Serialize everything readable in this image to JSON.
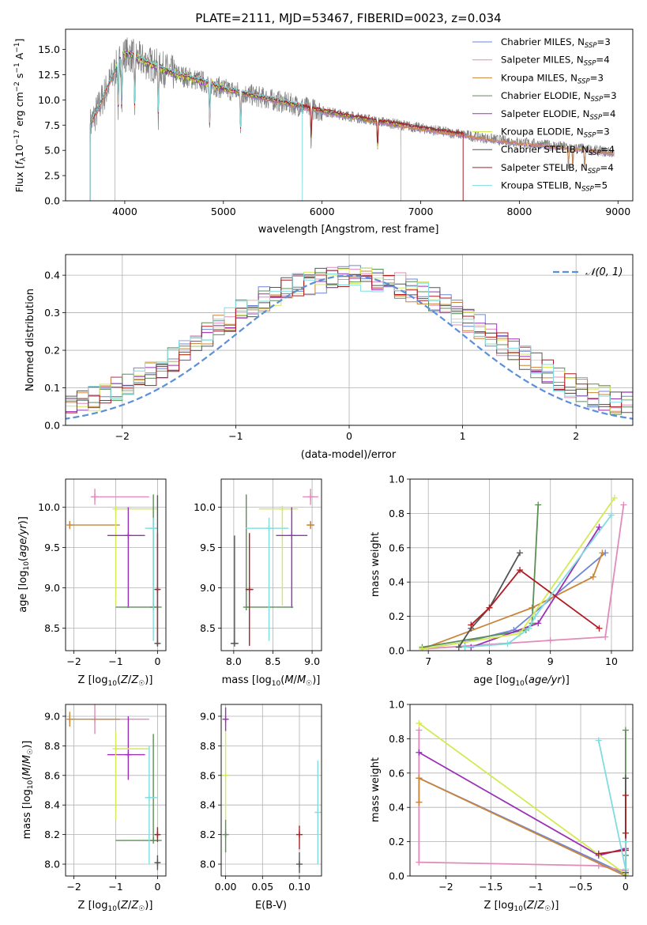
{
  "colors": {
    "Chabrier MILES": "#6f86d6",
    "Salpeter MILES": "#e08bbb",
    "Kroupa MILES": "#c9853a",
    "Chabrier ELODIE": "#5c8f55",
    "Salpeter ELODIE": "#9b30b7",
    "Kroupa ELODIE": "#d4ea53",
    "Chabrier STELIB": "#555555",
    "Salpeter STELIB": "#b01c22",
    "Kroupa STELIB": "#7fdde0",
    "data": "#808080",
    "gaussian": "#5b8fd9"
  },
  "chart_data": [
    {
      "type": "line",
      "title": "PLATE=2111, MJD=53467, FIBERID=0023, z=0.034",
      "xlabel": "wavelength [Angstrom, rest frame]",
      "ylabel": "Flux [f_λ 10^-17 erg cm^-2 s^-1 A^-1]",
      "xlim": [
        3400,
        9150
      ],
      "ylim": [
        0,
        17
      ],
      "xticks": [
        4000,
        5000,
        6000,
        7000,
        8000,
        9000
      ],
      "yticks": [
        0.0,
        2.5,
        5.0,
        7.5,
        10.0,
        12.5,
        15.0
      ],
      "legend_position": "top-right",
      "series": [
        {
          "name": "Chabrier MILES, N_SSP=3"
        },
        {
          "name": "Salpeter MILES, N_SSP=4"
        },
        {
          "name": "Kroupa MILES, N_SSP=3"
        },
        {
          "name": "Chabrier ELODIE, N_SSP=3"
        },
        {
          "name": "Salpeter ELODIE, N_SSP=4"
        },
        {
          "name": "Kroupa ELODIE, N_SSP=3"
        },
        {
          "name": "Chabrier STELIB, N_SSP=4"
        },
        {
          "name": "Salpeter STELIB, N_SSP=4"
        },
        {
          "name": "Kroupa STELIB, N_SSP=5"
        }
      ],
      "data_continuum": {
        "x": [
          3650,
          3800,
          3950,
          4050,
          4200,
          4500,
          4800,
          5000,
          5500,
          6000,
          6500,
          7000,
          7400,
          7800,
          8200,
          8600,
          9000
        ],
        "y": [
          10.0,
          12.5,
          14.5,
          14.5,
          13.8,
          12.6,
          11.8,
          11.1,
          10.0,
          8.9,
          8.0,
          7.2,
          6.6,
          6.0,
          5.6,
          5.2,
          4.7
        ]
      },
      "model_cutoffs": {
        "Kroupa ELODIE": [
          3900,
          6800
        ],
        "Chabrier ELODIE": [
          3900,
          6800
        ],
        "Salpeter ELODIE": [
          3900,
          6800
        ],
        "Kroupa STELIB": [
          3650,
          5800
        ],
        "Chabrier STELIB": [
          3650,
          7430
        ],
        "Salpeter STELIB": [
          3650,
          7430
        ]
      }
    },
    {
      "type": "histogram",
      "xlabel": "(data-model)/error",
      "ylabel": "Normed distribution",
      "xlim": [
        -2.5,
        2.5
      ],
      "ylim": [
        0,
        0.455
      ],
      "xticks": [
        -2,
        -1,
        0,
        1,
        2
      ],
      "yticks": [
        0.0,
        0.1,
        0.2,
        0.3,
        0.4
      ],
      "legend": [
        "𝒩(0, 1)"
      ],
      "legend_position": "top-right",
      "bin_width": 0.1,
      "base_values": [
        0.03,
        0.032,
        0.035,
        0.04,
        0.045,
        0.05,
        0.055,
        0.062,
        0.072,
        0.083,
        0.095,
        0.108,
        0.123,
        0.14,
        0.158,
        0.177,
        0.197,
        0.218,
        0.24,
        0.261,
        0.282,
        0.302,
        0.32,
        0.336,
        0.35,
        0.362,
        0.372,
        0.38,
        0.386,
        0.39,
        0.392,
        0.392,
        0.39,
        0.386,
        0.38,
        0.372,
        0.362,
        0.35,
        0.336,
        0.32,
        0.302,
        0.282,
        0.261,
        0.24,
        0.218,
        0.197,
        0.177,
        0.158,
        0.14,
        0.123,
        0.108,
        0.095,
        0.083,
        0.072,
        0.062,
        0.055,
        0.05,
        0.045,
        0.04,
        0.035,
        0.032,
        0.03
      ]
    },
    {
      "type": "errorbar",
      "xlabel": "Z [log10(Z/Z☉)]",
      "ylabel": "age [log10(age/yr)]",
      "xlim": [
        -2.2,
        0.2
      ],
      "ylim": [
        8.22,
        10.35
      ],
      "xticks": [
        -2,
        -1,
        0
      ],
      "yticks": [
        8.5,
        9.0,
        9.5,
        10.0
      ],
      "points": [
        {
          "series": "Salpeter MILES",
          "x": -1.5,
          "y": 10.13,
          "xerr": [
            0.1,
            1.3
          ],
          "yerr": [
            0.1,
            0.1
          ]
        },
        {
          "series": "Kroupa MILES",
          "x": -2.1,
          "y": 9.78,
          "xerr": [
            0.0,
            1.2
          ],
          "yerr": [
            0.05,
            0.05
          ]
        },
        {
          "series": "Kroupa ELODIE",
          "x": -1.0,
          "y": 9.98,
          "xerr": [
            0.0,
            1.0
          ],
          "yerr": [
            1.2,
            0.0
          ]
        },
        {
          "series": "Salpeter ELODIE",
          "x": -0.7,
          "y": 9.65,
          "xerr": [
            0.5,
            0.4
          ],
          "yerr": [
            0.9,
            0.35
          ]
        },
        {
          "series": "Chabrier ELODIE",
          "x": -0.1,
          "y": 8.76,
          "xerr": [
            0.9,
            0.2
          ],
          "yerr": [
            0.0,
            1.4
          ]
        },
        {
          "series": "Kroupa STELIB",
          "x": -0.1,
          "y": 9.74,
          "xerr": [
            0.2,
            0.1
          ],
          "yerr": [
            1.4,
            0.13
          ]
        },
        {
          "series": "Salpeter STELIB",
          "x": 0.0,
          "y": 8.98,
          "xerr": [
            0.05,
            0.05
          ],
          "yerr": [
            0.7,
            0.7
          ]
        },
        {
          "series": "Chabrier STELIB",
          "x": 0.0,
          "y": 8.31,
          "xerr": [
            0.05,
            0.05
          ],
          "yerr": [
            0.0,
            1.84
          ]
        }
      ]
    },
    {
      "type": "errorbar",
      "xlabel": "mass [log10(M/M☉)]",
      "ylabel": "",
      "xlim": [
        7.84,
        9.12
      ],
      "ylim": [
        8.22,
        10.35
      ],
      "xticks": [
        8.0,
        8.5,
        9.0
      ],
      "yticks": [
        8.5,
        9.0,
        9.5,
        10.0
      ],
      "points": [
        {
          "series": "Salpeter MILES",
          "x": 8.98,
          "y": 10.13,
          "xerr": [
            0.1,
            0.1
          ],
          "yerr": [
            0.1,
            0.1
          ]
        },
        {
          "series": "Kroupa MILES",
          "x": 8.98,
          "y": 9.78,
          "xerr": [
            0.05,
            0.05
          ],
          "yerr": [
            0.05,
            0.05
          ]
        },
        {
          "series": "Kroupa ELODIE",
          "x": 8.62,
          "y": 9.98,
          "xerr": [
            0.3,
            0.2
          ],
          "yerr": [
            1.2,
            0.0
          ]
        },
        {
          "series": "Salpeter ELODIE",
          "x": 8.74,
          "y": 9.65,
          "xerr": [
            0.2,
            0.2
          ],
          "yerr": [
            0.9,
            0.35
          ]
        },
        {
          "series": "Chabrier ELODIE",
          "x": 8.16,
          "y": 8.76,
          "xerr": [
            0.0,
            0.6
          ],
          "yerr": [
            0.0,
            1.4
          ]
        },
        {
          "series": "Kroupa STELIB",
          "x": 8.45,
          "y": 9.74,
          "xerr": [
            0.3,
            0.25
          ],
          "yerr": [
            1.4,
            0.13
          ]
        },
        {
          "series": "Salpeter STELIB",
          "x": 8.2,
          "y": 8.98,
          "xerr": [
            0.05,
            0.05
          ],
          "yerr": [
            0.7,
            0.7
          ]
        },
        {
          "series": "Chabrier STELIB",
          "x": 8.01,
          "y": 8.31,
          "xerr": [
            0.05,
            0.05
          ],
          "yerr": [
            0.0,
            1.34
          ]
        }
      ]
    },
    {
      "type": "line",
      "xlabel": "age  [log10(age/yr)]",
      "ylabel": "mass weight",
      "xlim": [
        6.7,
        10.35
      ],
      "ylim": [
        0.0,
        1.0
      ],
      "xticks": [
        7,
        8,
        9,
        10
      ],
      "yticks": [
        0.0,
        0.2,
        0.4,
        0.6,
        0.8,
        1.0
      ],
      "series": [
        {
          "name": "Chabrier MILES",
          "x": [
            6.9,
            7.6,
            8.4,
            9.9
          ],
          "y": [
            0.01,
            0.05,
            0.12,
            0.57
          ]
        },
        {
          "name": "Salpeter MILES",
          "x": [
            6.9,
            9.0,
            9.9,
            10.2
          ],
          "y": [
            0.01,
            0.06,
            0.08,
            0.85
          ]
        },
        {
          "name": "Kroupa MILES",
          "x": [
            6.9,
            8.7,
            9.7,
            9.85
          ],
          "y": [
            0.01,
            0.25,
            0.43,
            0.57
          ]
        },
        {
          "name": "Chabrier ELODIE",
          "x": [
            6.9,
            8.6,
            8.7,
            8.8
          ],
          "y": [
            0.02,
            0.12,
            0.16,
            0.85
          ]
        },
        {
          "name": "Salpeter ELODIE",
          "x": [
            7.7,
            8.8,
            9.8
          ],
          "y": [
            0.02,
            0.16,
            0.72
          ]
        },
        {
          "name": "Kroupa ELODIE",
          "x": [
            6.9,
            8.5,
            10.05
          ],
          "y": [
            0.01,
            0.1,
            0.89
          ]
        },
        {
          "name": "Chabrier STELIB",
          "x": [
            7.5,
            7.7,
            8.0,
            8.5
          ],
          "y": [
            0.02,
            0.13,
            0.25,
            0.57
          ]
        },
        {
          "name": "Salpeter STELIB",
          "x": [
            7.7,
            8.0,
            8.5,
            9.8
          ],
          "y": [
            0.15,
            0.25,
            0.47,
            0.13
          ]
        },
        {
          "name": "Kroupa STELIB",
          "x": [
            7.6,
            8.3,
            8.65,
            8.75,
            10.0
          ],
          "y": [
            0.02,
            0.04,
            0.13,
            0.2,
            0.79
          ]
        }
      ]
    },
    {
      "type": "errorbar",
      "xlabel": "Z [log10(Z/Z☉)]",
      "ylabel": "mass [log10(M/M☉)]",
      "xlim": [
        -2.2,
        0.2
      ],
      "ylim": [
        7.92,
        9.08
      ],
      "xticks": [
        -2,
        -1,
        0
      ],
      "yticks": [
        8.0,
        8.2,
        8.4,
        8.6,
        8.8,
        9.0
      ],
      "points": [
        {
          "series": "Salpeter MILES",
          "x": -1.5,
          "y": 8.98,
          "xerr": [
            0.1,
            1.3
          ],
          "yerr": [
            0.1,
            0.1
          ]
        },
        {
          "series": "Kroupa MILES",
          "x": -2.1,
          "y": 8.98,
          "xerr": [
            0.0,
            1.2
          ],
          "yerr": [
            0.05,
            0.05
          ]
        },
        {
          "series": "Salpeter ELODIE",
          "x": -0.7,
          "y": 8.74,
          "xerr": [
            0.5,
            0.4
          ],
          "yerr": [
            0.17,
            0.26
          ]
        },
        {
          "series": "Kroupa ELODIE",
          "x": -1.0,
          "y": 8.78,
          "xerr": [
            0.0,
            0.8
          ],
          "yerr": [
            0.48,
            0.12
          ]
        },
        {
          "series": "Chabrier ELODIE",
          "x": -0.1,
          "y": 8.16,
          "xerr": [
            0.9,
            0.2
          ],
          "yerr": [
            0.0,
            0.72
          ]
        },
        {
          "series": "Kroupa STELIB",
          "x": -0.2,
          "y": 8.45,
          "xerr": [
            0.1,
            0.2
          ],
          "yerr": [
            0.45,
            0.35
          ]
        },
        {
          "series": "Salpeter STELIB",
          "x": 0.0,
          "y": 8.2,
          "xerr": [
            0.05,
            0.05
          ],
          "yerr": [
            0.05,
            0.05
          ]
        },
        {
          "series": "Chabrier STELIB",
          "x": 0.0,
          "y": 8.01,
          "xerr": [
            0.05,
            0.05
          ],
          "yerr": [
            0.05,
            0.05
          ]
        }
      ]
    },
    {
      "type": "errorbar",
      "xlabel": "E(B-V)",
      "ylabel": "",
      "xlim": [
        -0.006,
        0.13
      ],
      "ylim": [
        7.92,
        9.08
      ],
      "xticks": [
        0.0,
        0.05,
        0.1
      ],
      "yticks": [
        8.0,
        8.2,
        8.4,
        8.6,
        8.8,
        9.0
      ],
      "points": [
        {
          "series": "Salpeter ELODIE",
          "x": 0.0,
          "y": 8.98,
          "yerr": [
            0.08,
            0.08
          ]
        },
        {
          "series": "Kroupa ELODIE",
          "x": 0.0,
          "y": 8.6,
          "yerr": [
            0.3,
            0.3
          ]
        },
        {
          "series": "Chabrier ELODIE",
          "x": 0.0,
          "y": 8.2,
          "yerr": [
            0.12,
            0.1
          ]
        },
        {
          "series": "Salpeter STELIB",
          "x": 0.1,
          "y": 8.2,
          "yerr": [
            0.1,
            0.06
          ]
        },
        {
          "series": "Chabrier STELIB",
          "x": 0.1,
          "y": 8.0,
          "yerr": [
            0.06,
            0.08
          ]
        },
        {
          "series": "Kroupa STELIB",
          "x": 0.125,
          "y": 8.35,
          "yerr": [
            0.35,
            0.35
          ]
        }
      ]
    },
    {
      "type": "line",
      "xlabel": "Z [log10(Z/Z☉)]",
      "ylabel": "mass weight",
      "xlim": [
        -2.4,
        0.08
      ],
      "ylim": [
        0.0,
        1.0
      ],
      "xticks": [
        -2.0,
        -1.5,
        -1.0,
        -0.5,
        0.0
      ],
      "yticks": [
        0.0,
        0.2,
        0.4,
        0.6,
        0.8,
        1.0
      ],
      "series": [
        {
          "name": "Chabrier MILES",
          "x": [
            -2.3,
            0.0
          ],
          "y": [
            0.57,
            0.01
          ]
        },
        {
          "name": "Salpeter MILES",
          "x": [
            -2.3,
            -2.3,
            -2.3,
            -0.3,
            0.0,
            0.0
          ],
          "y": [
            0.85,
            0.43,
            0.08,
            0.06,
            0.03,
            0.12
          ]
        },
        {
          "name": "Kroupa MILES",
          "x": [
            -2.3,
            -2.3,
            0.0
          ],
          "y": [
            0.43,
            0.57,
            0.0
          ]
        },
        {
          "name": "Chabrier ELODIE",
          "x": [
            0.0,
            0.0,
            0.0
          ],
          "y": [
            0.02,
            0.85,
            0.12
          ]
        },
        {
          "name": "Salpeter ELODIE",
          "x": [
            -2.3,
            -0.3,
            0.0
          ],
          "y": [
            0.72,
            0.12,
            0.16
          ]
        },
        {
          "name": "Kroupa ELODIE",
          "x": [
            -2.3,
            0.0
          ],
          "y": [
            0.89,
            0.01
          ]
        },
        {
          "name": "Chabrier STELIB",
          "x": [
            0.0,
            0.0
          ],
          "y": [
            0.02,
            0.57
          ]
        },
        {
          "name": "Salpeter STELIB",
          "x": [
            -0.3,
            0.0,
            0.0,
            0.0,
            0.0
          ],
          "y": [
            0.13,
            0.15,
            0.47,
            0.25,
            0.15
          ]
        },
        {
          "name": "Kroupa STELIB",
          "x": [
            -0.3,
            0.0,
            0.0
          ],
          "y": [
            0.79,
            0.04,
            0.2
          ]
        }
      ]
    }
  ]
}
